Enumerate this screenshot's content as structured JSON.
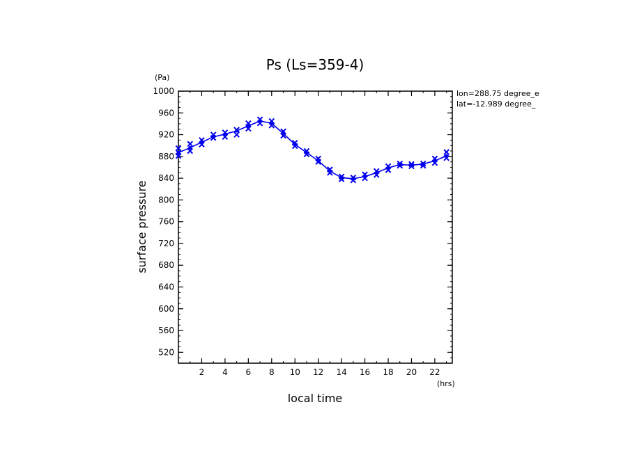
{
  "chart_data": {
    "type": "line",
    "title": "Ps (Ls=359-4)",
    "xlabel": "local time",
    "ylabel": "surface pressure",
    "x_unit": "(hrs)",
    "y_unit": "(Pa)",
    "xlim": [
      0,
      23.5
    ],
    "ylim": [
      500,
      1000
    ],
    "x_ticks": [
      2,
      4,
      6,
      8,
      10,
      12,
      14,
      16,
      18,
      20,
      22
    ],
    "y_ticks": [
      520,
      560,
      600,
      640,
      680,
      720,
      760,
      800,
      840,
      880,
      920,
      960,
      1000
    ],
    "annotations": [
      "lon=288.75 degree_e",
      "lat=-12.989 degree_"
    ],
    "line_color": "#0000ee",
    "series": [
      {
        "x": [
          0,
          1,
          2,
          3,
          4,
          5,
          6,
          7,
          8,
          9,
          10,
          11,
          12,
          13,
          14,
          15,
          16,
          17,
          18,
          19,
          20,
          21,
          22,
          23
        ],
        "values": [
          887,
          896,
          906,
          916,
          921,
          927,
          936,
          945,
          941,
          922,
          902,
          887,
          872,
          853,
          841,
          839,
          843,
          850,
          859,
          865,
          864,
          866,
          872,
          881
        ]
      }
    ],
    "markers": {
      "x": [
        0,
        0,
        0,
        1,
        1,
        2,
        2,
        3,
        3,
        4,
        4,
        5,
        5,
        6,
        6,
        7,
        7,
        8,
        8,
        9,
        9,
        10,
        10,
        11,
        11,
        12,
        12,
        13,
        13,
        14,
        14,
        15,
        15,
        16,
        16,
        17,
        17,
        18,
        18,
        19,
        19,
        20,
        20,
        21,
        21,
        22,
        22,
        23,
        23
      ],
      "y": [
        895,
        881,
        887,
        903,
        890,
        910,
        902,
        920,
        914,
        924,
        916,
        929,
        920,
        941,
        931,
        948,
        941,
        945,
        937,
        926,
        918,
        905,
        899,
        890,
        884,
        876,
        870,
        856,
        850,
        843,
        838,
        841,
        836,
        847,
        840,
        853,
        846,
        862,
        855,
        867,
        863,
        866,
        862,
        867,
        863,
        876,
        868,
        888,
        877
      ]
    }
  }
}
